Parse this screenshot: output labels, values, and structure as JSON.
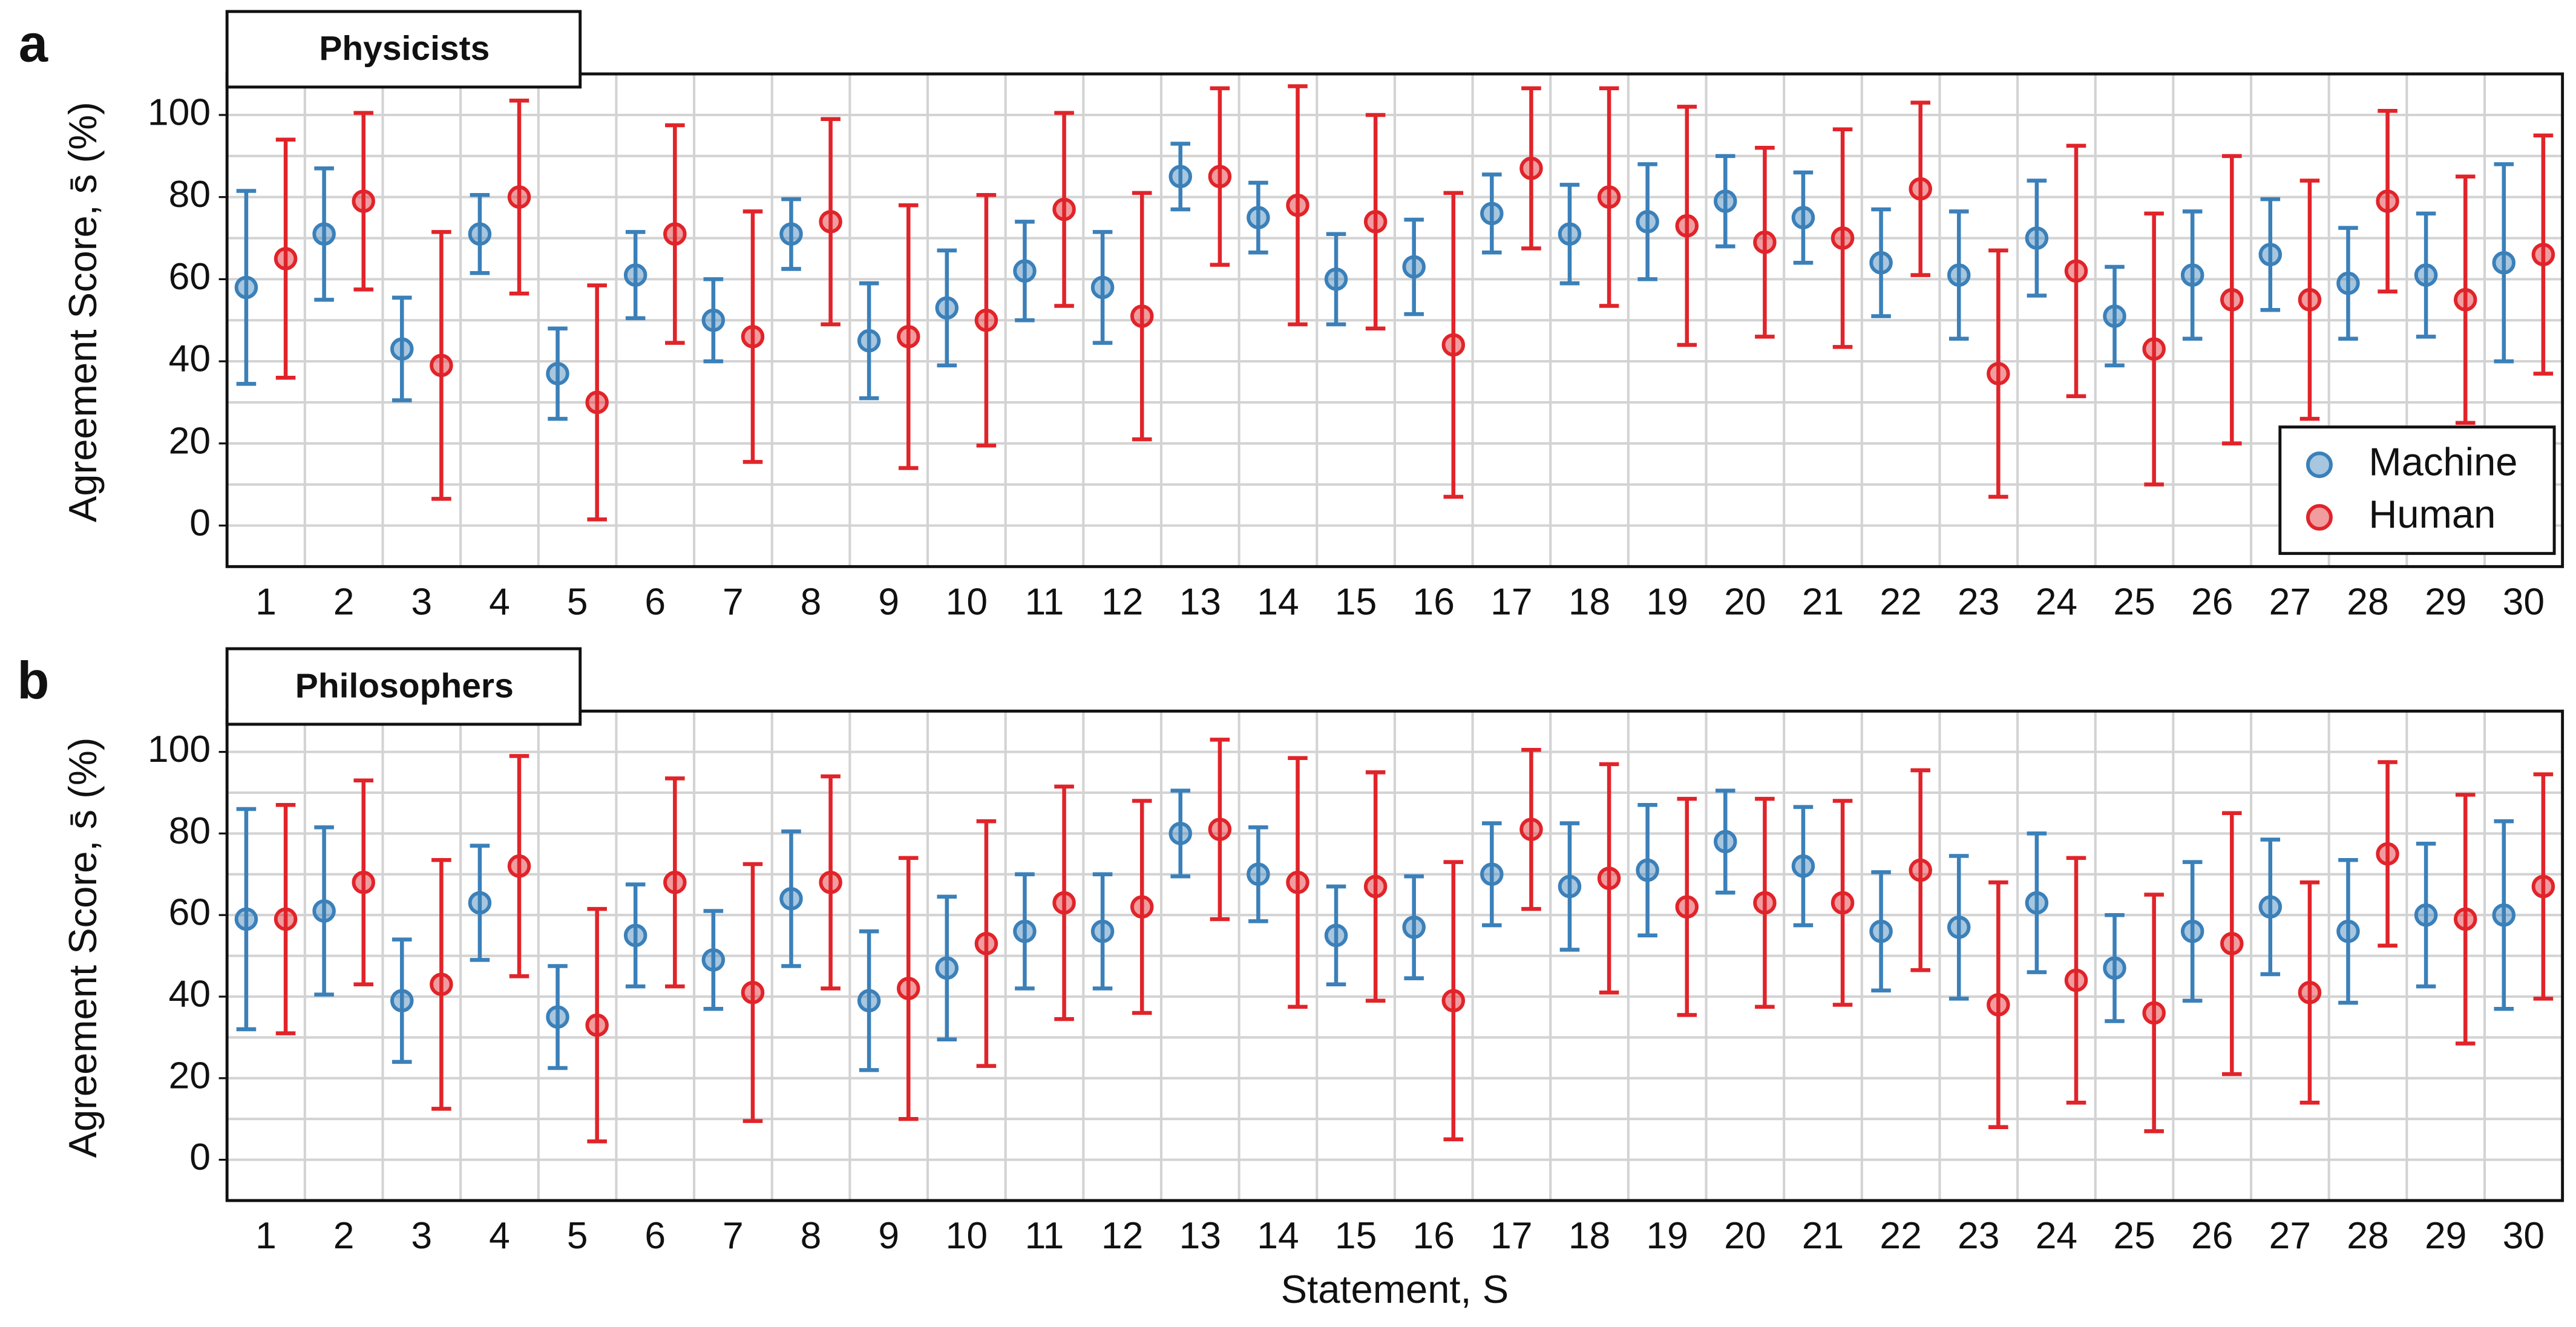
{
  "chart_data": [
    {
      "type": "errorbar",
      "panel_label": "a",
      "title": "Physicists",
      "y_label": "Agreement Score, s̄ (%)",
      "categories": [
        "1",
        "2",
        "3",
        "4",
        "5",
        "6",
        "7",
        "8",
        "9",
        "10",
        "11",
        "12",
        "13",
        "14",
        "15",
        "16",
        "17",
        "18",
        "19",
        "20",
        "21",
        "22",
        "23",
        "24",
        "25",
        "26",
        "27",
        "28",
        "29",
        "30"
      ],
      "series": [
        {
          "name": "Machine",
          "color": "#3b80b9",
          "values": [
            58,
            71,
            43,
            71,
            37,
            61,
            50,
            71,
            45,
            53,
            62,
            58,
            85,
            75,
            60,
            63,
            76,
            71,
            74,
            79,
            75,
            64,
            61,
            70,
            51,
            61,
            66,
            59,
            61,
            64
          ],
          "errors": [
            23.5,
            16,
            12.5,
            9.5,
            11,
            10.5,
            10,
            8.5,
            14,
            14,
            12,
            13.5,
            8,
            8.5,
            11,
            11.5,
            9.5,
            12,
            14,
            11,
            11,
            13,
            15.5,
            14,
            12,
            15.5,
            13.5,
            13.5,
            15,
            24
          ]
        },
        {
          "name": "Human",
          "color": "#e0242a",
          "values": [
            65,
            79,
            39,
            80,
            30,
            71,
            46,
            74,
            46,
            50,
            77,
            51,
            85,
            78,
            74,
            44,
            87,
            80,
            73,
            69,
            70,
            82,
            37,
            62,
            43,
            55,
            55,
            79,
            55,
            66
          ],
          "errors": [
            29,
            21.5,
            32.5,
            23.5,
            28.5,
            26.5,
            30.5,
            25,
            32,
            30.5,
            23.5,
            30,
            21.5,
            29,
            26,
            37,
            19.5,
            26.5,
            29,
            23,
            26.5,
            21,
            30,
            30.5,
            33,
            35,
            29,
            22,
            30,
            29
          ]
        }
      ],
      "ylim": [
        -10,
        110
      ],
      "yticks": [
        0,
        20,
        40,
        60,
        80,
        100
      ],
      "minor_yticks": [
        -10,
        10,
        30,
        50,
        70,
        90,
        110
      ],
      "grid": true,
      "legend": "lower right"
    },
    {
      "type": "errorbar",
      "panel_label": "b",
      "title": "Philosophers",
      "y_label": "Agreement Score, s̄ (%)",
      "x_label": "Statement, S",
      "categories": [
        "1",
        "2",
        "3",
        "4",
        "5",
        "6",
        "7",
        "8",
        "9",
        "10",
        "11",
        "12",
        "13",
        "14",
        "15",
        "16",
        "17",
        "18",
        "19",
        "20",
        "21",
        "22",
        "23",
        "24",
        "25",
        "26",
        "27",
        "28",
        "29",
        "30"
      ],
      "series": [
        {
          "name": "Machine",
          "color": "#3b80b9",
          "values": [
            59,
            61,
            39,
            63,
            35,
            55,
            49,
            64,
            39,
            47,
            56,
            56,
            80,
            70,
            55,
            57,
            70,
            67,
            71,
            78,
            72,
            56,
            57,
            63,
            47,
            56,
            62,
            56,
            60,
            60
          ],
          "errors": [
            27,
            20.5,
            15,
            14,
            12.5,
            12.5,
            12,
            16.5,
            17,
            17.5,
            14,
            14,
            10.5,
            11.5,
            12,
            12.5,
            12.5,
            15.5,
            16,
            12.5,
            14.5,
            14.5,
            17.5,
            17,
            13,
            17,
            16.5,
            17.5,
            17.5,
            23
          ]
        },
        {
          "name": "Human",
          "color": "#e0242a",
          "values": [
            59,
            68,
            43,
            72,
            33,
            68,
            41,
            68,
            42,
            53,
            63,
            62,
            81,
            68,
            67,
            39,
            81,
            69,
            62,
            63,
            63,
            71,
            38,
            44,
            36,
            53,
            41,
            75,
            59,
            67
          ],
          "errors": [
            28,
            25,
            30.5,
            27,
            28.5,
            25.5,
            31.5,
            26,
            32,
            30,
            28.5,
            26,
            22,
            30.5,
            28,
            34,
            19.5,
            28,
            26.5,
            25.5,
            25,
            24.5,
            30,
            30,
            29,
            32,
            27,
            22.5,
            30.5,
            27.5
          ]
        }
      ],
      "ylim": [
        -10,
        110
      ],
      "yticks": [
        0,
        20,
        40,
        60,
        80,
        100
      ],
      "minor_yticks": [
        -10,
        10,
        30,
        50,
        70,
        90,
        110
      ],
      "grid": true,
      "legend": false
    }
  ]
}
